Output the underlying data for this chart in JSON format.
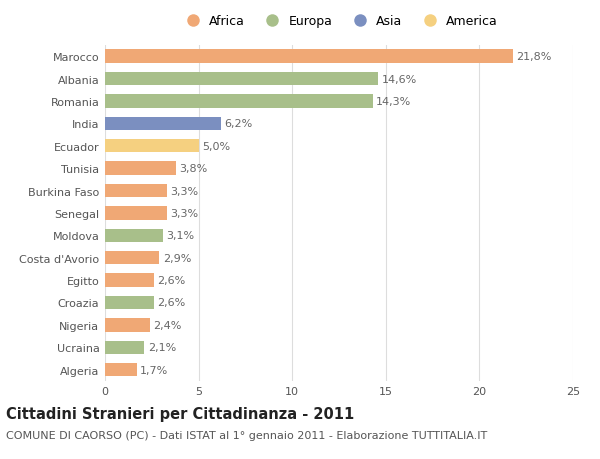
{
  "categories": [
    "Algeria",
    "Ucraina",
    "Nigeria",
    "Croazia",
    "Egitto",
    "Costa d'Avorio",
    "Moldova",
    "Senegal",
    "Burkina Faso",
    "Tunisia",
    "Ecuador",
    "India",
    "Romania",
    "Albania",
    "Marocco"
  ],
  "values": [
    1.7,
    2.1,
    2.4,
    2.6,
    2.6,
    2.9,
    3.1,
    3.3,
    3.3,
    3.8,
    5.0,
    6.2,
    14.3,
    14.6,
    21.8
  ],
  "colors": [
    "#f0a875",
    "#a8bf8a",
    "#f0a875",
    "#a8bf8a",
    "#f0a875",
    "#f0a875",
    "#a8bf8a",
    "#f0a875",
    "#f0a875",
    "#f0a875",
    "#f5d080",
    "#7b8fc0",
    "#a8bf8a",
    "#a8bf8a",
    "#f0a875"
  ],
  "labels": [
    "1,7%",
    "2,1%",
    "2,4%",
    "2,6%",
    "2,6%",
    "2,9%",
    "3,1%",
    "3,3%",
    "3,3%",
    "3,8%",
    "5,0%",
    "6,2%",
    "14,3%",
    "14,6%",
    "21,8%"
  ],
  "legend": [
    {
      "label": "Africa",
      "color": "#f0a875"
    },
    {
      "label": "Europa",
      "color": "#a8bf8a"
    },
    {
      "label": "Asia",
      "color": "#7b8fc0"
    },
    {
      "label": "America",
      "color": "#f5d080"
    }
  ],
  "title": "Cittadini Stranieri per Cittadinanza - 2011",
  "subtitle": "COMUNE DI CAORSO (PC) - Dati ISTAT al 1° gennaio 2011 - Elaborazione TUTTITALIA.IT",
  "xlim": [
    0,
    25
  ],
  "xticks": [
    0,
    5,
    10,
    15,
    20,
    25
  ],
  "background_color": "#ffffff",
  "grid_color": "#dddddd",
  "bar_height": 0.6,
  "title_fontsize": 10.5,
  "subtitle_fontsize": 8,
  "label_fontsize": 8,
  "tick_fontsize": 8,
  "legend_fontsize": 9
}
